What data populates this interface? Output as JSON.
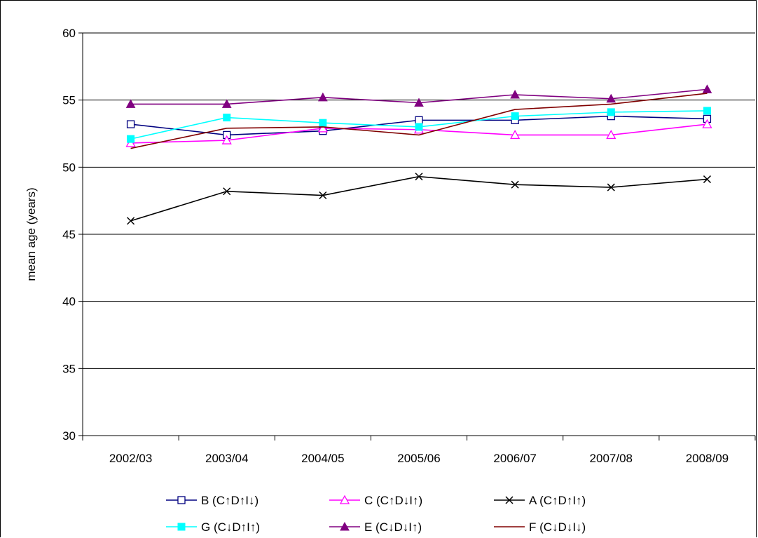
{
  "chart_data": {
    "type": "line",
    "title": "",
    "xlabel": "",
    "ylabel": "mean age (years)",
    "categories": [
      "2002/03",
      "2003/04",
      "2004/05",
      "2005/06",
      "2006/07",
      "2007/08",
      "2008/09"
    ],
    "ylim": [
      30,
      60
    ],
    "yticks": [
      30,
      35,
      40,
      45,
      50,
      55,
      60
    ],
    "grid": "horizontal",
    "legend_position": "bottom",
    "series": [
      {
        "name": "B (C↑D↑I↓)",
        "color": "#000080",
        "marker": "square-open",
        "values": [
          53.2,
          52.4,
          52.7,
          53.5,
          53.5,
          53.8,
          53.6
        ]
      },
      {
        "name": "C (C↑D↓I↑)",
        "color": "#ff00ff",
        "marker": "triangle-open",
        "values": [
          51.8,
          52.0,
          52.9,
          52.8,
          52.4,
          52.4,
          53.2
        ]
      },
      {
        "name": "A (C↑D↑I↑)",
        "color": "#000000",
        "marker": "x",
        "values": [
          46.0,
          48.2,
          47.9,
          49.3,
          48.7,
          48.5,
          49.1
        ]
      },
      {
        "name": "G (C↓D↑I↑)",
        "color": "#00ffff",
        "marker": "square-filled",
        "values": [
          52.1,
          53.7,
          53.3,
          53.0,
          53.8,
          54.1,
          54.2
        ]
      },
      {
        "name": "E (C↓D↓I↑)",
        "color": "#800080",
        "marker": "triangle-filled",
        "values": [
          54.7,
          54.7,
          55.2,
          54.8,
          55.4,
          55.1,
          55.8
        ]
      },
      {
        "name": "F (C↓D↓I↓)",
        "color": "#800000",
        "marker": "none",
        "values": [
          51.4,
          52.9,
          53.0,
          52.4,
          54.3,
          54.7,
          55.5
        ]
      }
    ]
  }
}
